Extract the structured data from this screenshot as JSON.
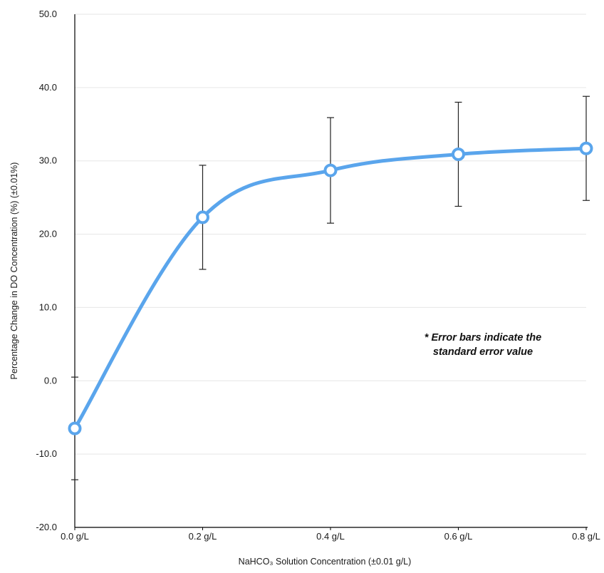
{
  "chart_data": {
    "type": "line",
    "title": "",
    "xlabel": "NaHCO₃ Solution Concentration (±0.01 g/L)",
    "ylabel": "Percentage Change in DO Concentration (%) (±0.01%)",
    "categories": [
      "0.0 g/L",
      "0.2 g/L",
      "0.4 g/L",
      "0.6 g/L",
      "0.8 g/L"
    ],
    "x": [
      0.0,
      0.2,
      0.4,
      0.6,
      0.8
    ],
    "series": [
      {
        "values": [
          -6.5,
          22.3,
          28.7,
          30.9,
          31.7
        ],
        "error": [
          7.0,
          7.1,
          7.2,
          7.1,
          7.1
        ]
      }
    ],
    "ylim": [
      -20,
      50
    ],
    "yticks": [
      -20,
      -10,
      0,
      10,
      20,
      30,
      40,
      50
    ],
    "yticklabels": [
      "-20.0",
      "-10.0",
      "0.0",
      "10.0",
      "20.0",
      "30.0",
      "40.0",
      "50.0"
    ],
    "grid": true,
    "line_color": "#5aa5ec",
    "annotation": [
      "* Error bars indicate the",
      "standard error value"
    ]
  }
}
